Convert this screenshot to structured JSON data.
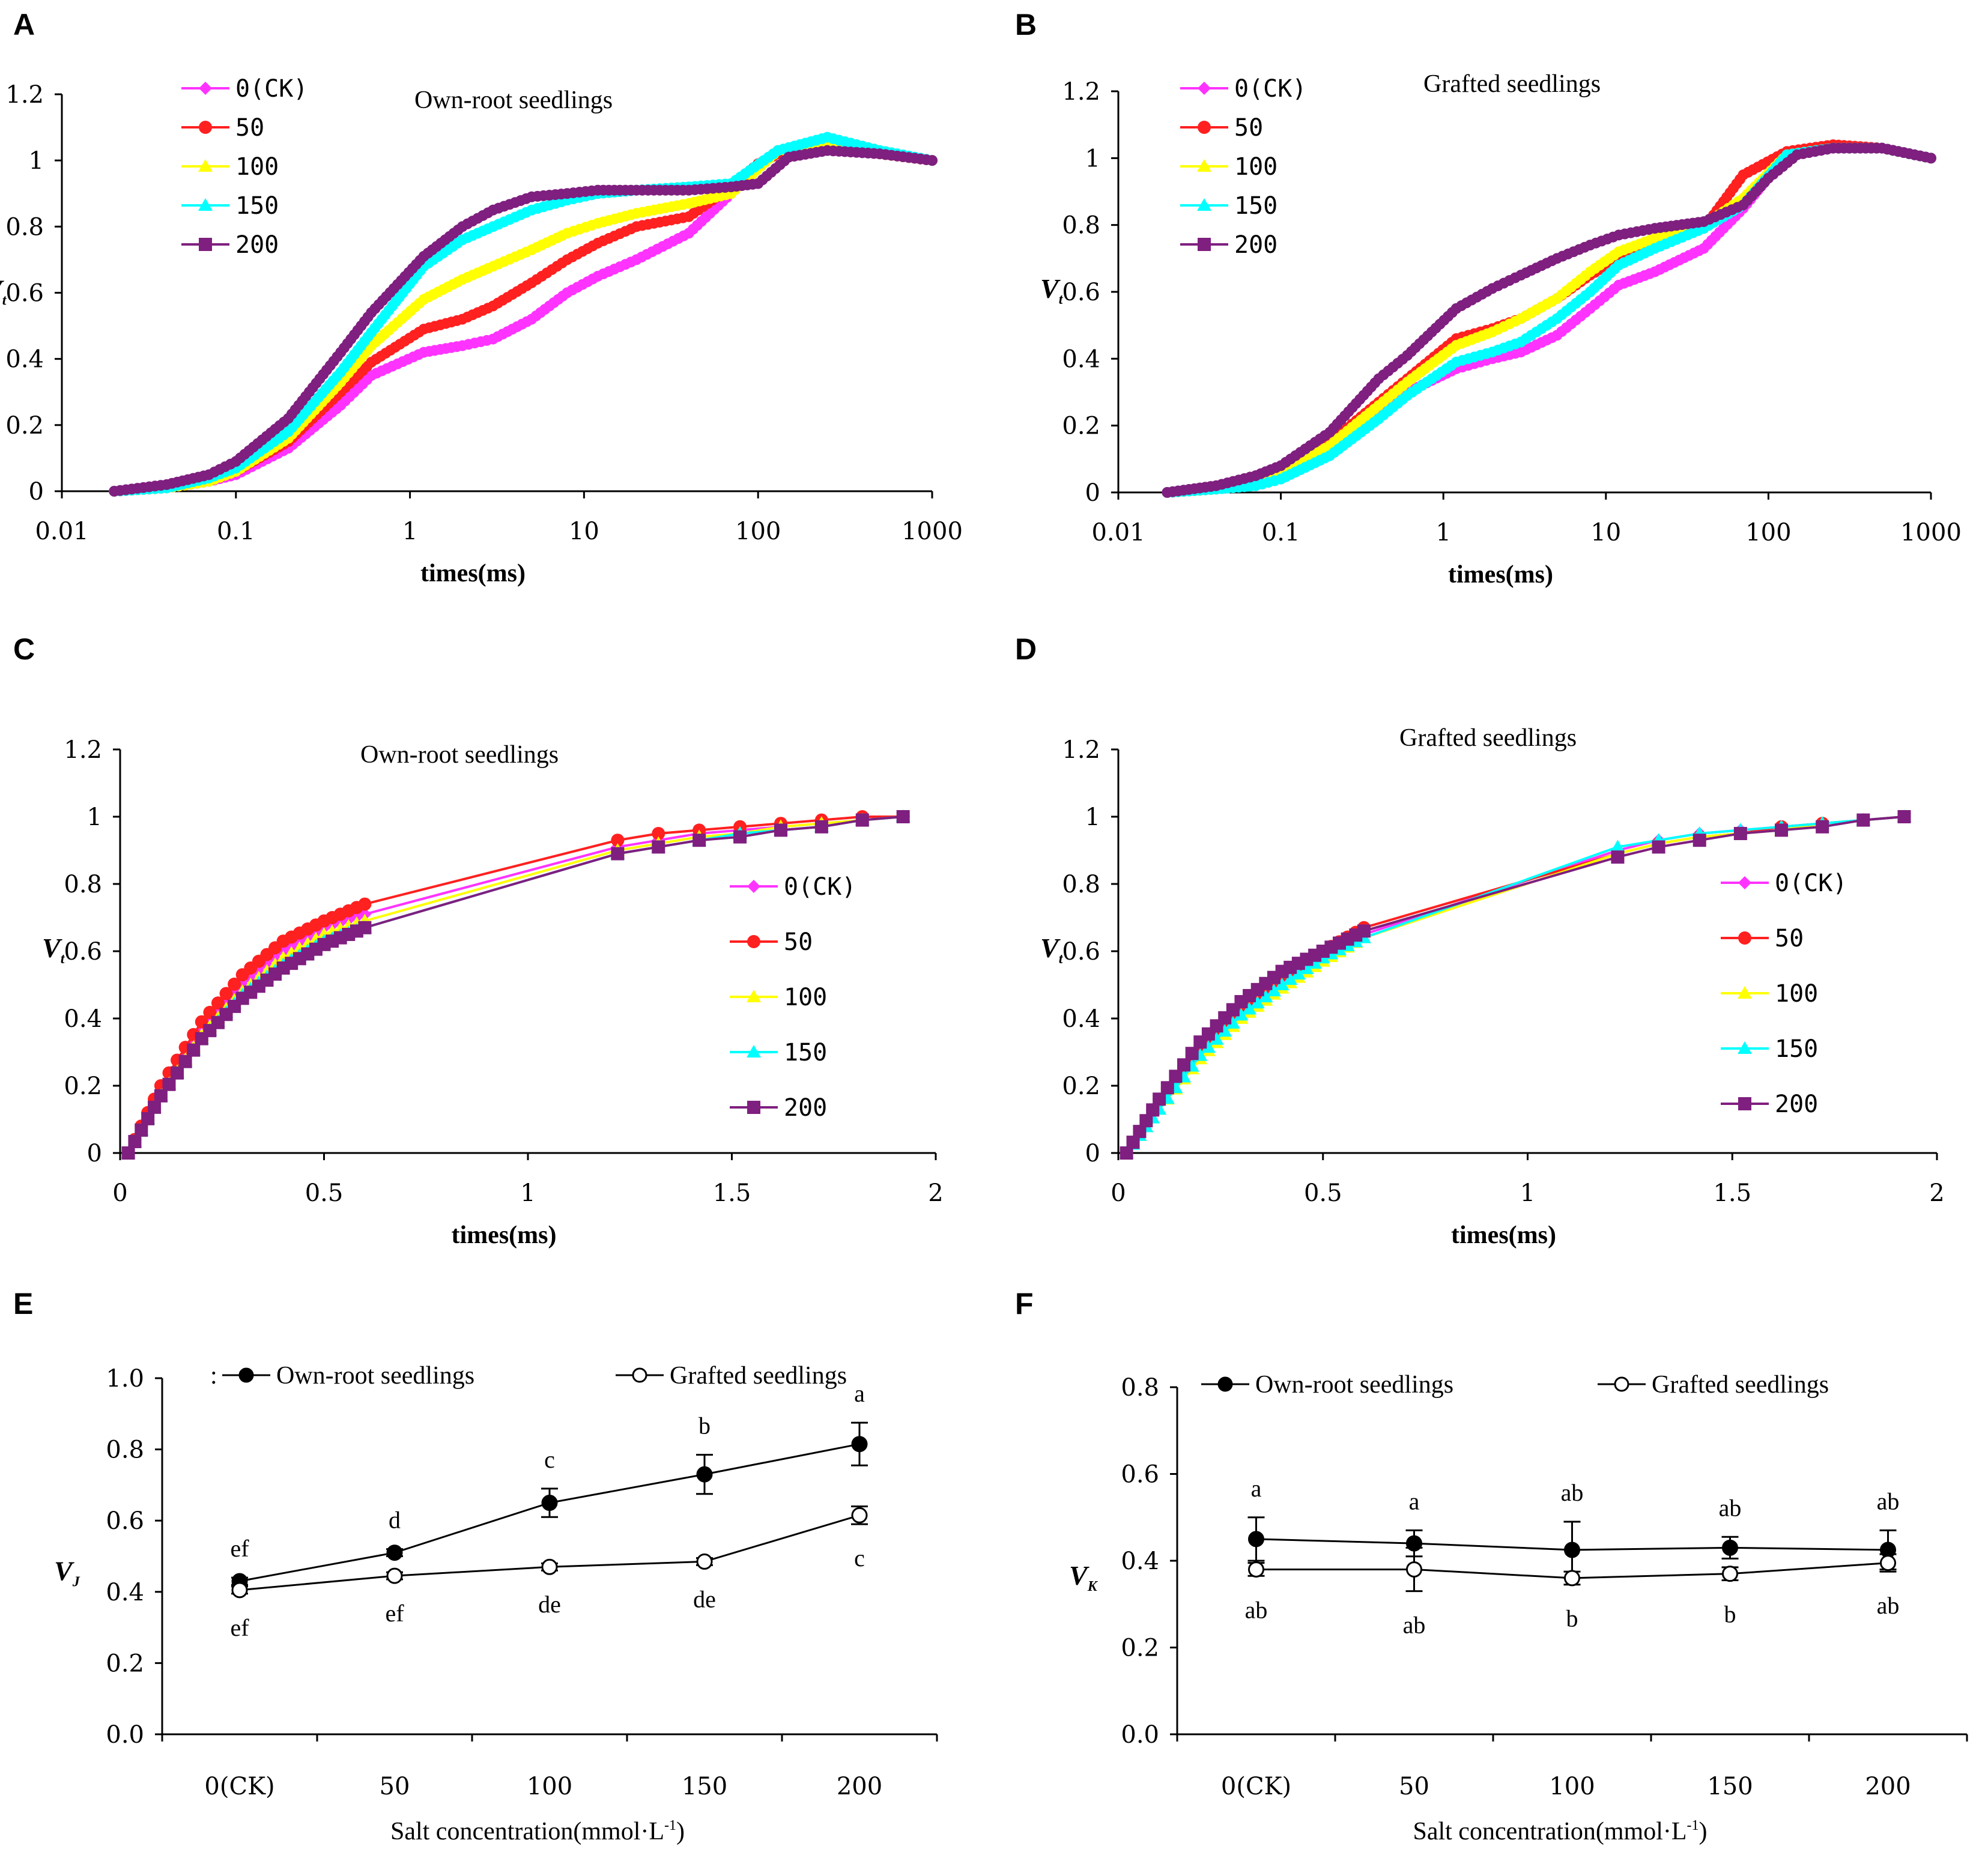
{
  "colors": {
    "s0": "#ff33ff",
    "s50": "#ff2020",
    "s100": "#ffff00",
    "s150": "#00ffff",
    "s200": "#7f1f7f",
    "axis": "#000000"
  },
  "chart_data": [
    {
      "panel": "A",
      "type": "line",
      "title": "Own-root seedlings",
      "xscale": "log",
      "xlabel": "times(ms)",
      "ylabel": "V",
      "ylabel_sub": "t",
      "xticks": [
        "0.01",
        "0.1",
        "1",
        "10",
        "100",
        "1000"
      ],
      "yticks": [
        "0",
        "0.2",
        "0.4",
        "0.6",
        "0.8",
        "1",
        "1.2"
      ],
      "xlim": [
        0.01,
        1000
      ],
      "ylim": [
        0,
        1.2
      ],
      "legend": [
        "0(CK)",
        "50",
        "100",
        "150",
        "200"
      ],
      "series": [
        {
          "name": "0(CK)",
          "x": [
            0.02,
            0.04,
            0.07,
            0.1,
            0.2,
            0.4,
            0.6,
            1.2,
            2,
            3,
            5,
            8,
            12,
            20,
            40,
            70,
            130,
            250,
            500,
            1000
          ],
          "y": [
            0,
            0.01,
            0.03,
            0.05,
            0.13,
            0.26,
            0.35,
            0.42,
            0.44,
            0.46,
            0.52,
            0.6,
            0.65,
            0.7,
            0.78,
            0.9,
            1.03,
            1.05,
            1.02,
            1.0
          ]
        },
        {
          "name": "50",
          "x": [
            0.02,
            0.04,
            0.07,
            0.1,
            0.2,
            0.4,
            0.6,
            1.2,
            2,
            3,
            5,
            8,
            12,
            20,
            40,
            70,
            100,
            130,
            250,
            500,
            1000
          ],
          "y": [
            0,
            0.01,
            0.03,
            0.06,
            0.15,
            0.3,
            0.39,
            0.49,
            0.52,
            0.56,
            0.63,
            0.7,
            0.75,
            0.8,
            0.83,
            0.92,
            0.99,
            1.02,
            1.05,
            1.02,
            1.0
          ]
        },
        {
          "name": "100",
          "x": [
            0.02,
            0.04,
            0.07,
            0.1,
            0.2,
            0.4,
            0.6,
            1.2,
            2,
            3,
            5,
            8,
            12,
            20,
            40,
            70,
            130,
            250,
            500,
            1000
          ],
          "y": [
            0,
            0.01,
            0.03,
            0.06,
            0.16,
            0.33,
            0.44,
            0.58,
            0.64,
            0.68,
            0.73,
            0.78,
            0.81,
            0.84,
            0.87,
            0.9,
            1.03,
            1.05,
            1.02,
            1.0
          ]
        },
        {
          "name": "150",
          "x": [
            0.02,
            0.04,
            0.07,
            0.1,
            0.2,
            0.4,
            0.6,
            1.2,
            2,
            3,
            5,
            8,
            12,
            20,
            40,
            70,
            130,
            250,
            500,
            1000
          ],
          "y": [
            0,
            0.01,
            0.04,
            0.07,
            0.18,
            0.36,
            0.48,
            0.68,
            0.76,
            0.8,
            0.85,
            0.88,
            0.9,
            0.91,
            0.92,
            0.93,
            1.03,
            1.07,
            1.03,
            1.0
          ]
        },
        {
          "name": "200",
          "x": [
            0.02,
            0.04,
            0.07,
            0.1,
            0.2,
            0.4,
            0.6,
            1.2,
            2,
            3,
            5,
            8,
            12,
            20,
            40,
            70,
            100,
            150,
            250,
            500,
            1000
          ],
          "y": [
            0,
            0.02,
            0.05,
            0.09,
            0.22,
            0.42,
            0.54,
            0.71,
            0.8,
            0.85,
            0.89,
            0.9,
            0.91,
            0.91,
            0.91,
            0.92,
            0.93,
            1.01,
            1.03,
            1.02,
            1.0
          ]
        }
      ]
    },
    {
      "panel": "B",
      "type": "line",
      "title": "Grafted seedlings",
      "xscale": "log",
      "xlabel": "times(ms)",
      "ylabel": "V",
      "ylabel_sub": "t",
      "xticks": [
        "0.01",
        "0.1",
        "1",
        "10",
        "100",
        "1000"
      ],
      "yticks": [
        "0",
        "0.2",
        "0.4",
        "0.6",
        "0.8",
        "1",
        "1.2"
      ],
      "xlim": [
        0.01,
        1000
      ],
      "ylim": [
        0,
        1.2
      ],
      "legend": [
        "0(CK)",
        "50",
        "100",
        "150",
        "200"
      ],
      "series": [
        {
          "name": "0(CK)",
          "x": [
            0.02,
            0.04,
            0.07,
            0.1,
            0.2,
            0.4,
            0.6,
            1.2,
            2,
            3,
            5,
            8,
            12,
            20,
            40,
            70,
            130,
            250,
            500,
            1000
          ],
          "y": [
            0,
            0.01,
            0.03,
            0.05,
            0.12,
            0.23,
            0.3,
            0.37,
            0.4,
            0.42,
            0.47,
            0.55,
            0.62,
            0.66,
            0.73,
            0.85,
            1.01,
            1.03,
            1.03,
            1.0
          ]
        },
        {
          "name": "50",
          "x": [
            0.02,
            0.04,
            0.07,
            0.1,
            0.2,
            0.4,
            0.6,
            1.2,
            2,
            3,
            5,
            8,
            12,
            20,
            40,
            70,
            130,
            250,
            500,
            1000
          ],
          "y": [
            0,
            0.01,
            0.03,
            0.06,
            0.15,
            0.27,
            0.34,
            0.46,
            0.49,
            0.52,
            0.58,
            0.65,
            0.7,
            0.74,
            0.79,
            0.95,
            1.02,
            1.04,
            1.03,
            1.0
          ]
        },
        {
          "name": "100",
          "x": [
            0.02,
            0.04,
            0.07,
            0.1,
            0.2,
            0.4,
            0.6,
            1.2,
            2,
            3,
            5,
            8,
            12,
            20,
            40,
            70,
            130,
            250,
            500,
            1000
          ],
          "y": [
            0,
            0.01,
            0.03,
            0.06,
            0.14,
            0.26,
            0.33,
            0.44,
            0.48,
            0.52,
            0.58,
            0.66,
            0.72,
            0.76,
            0.8,
            0.88,
            1.01,
            1.03,
            1.03,
            1.0
          ]
        },
        {
          "name": "150",
          "x": [
            0.02,
            0.04,
            0.07,
            0.1,
            0.2,
            0.4,
            0.6,
            1.2,
            2,
            3,
            5,
            8,
            12,
            20,
            40,
            70,
            130,
            250,
            500,
            1000
          ],
          "y": [
            0,
            0.01,
            0.02,
            0.04,
            0.11,
            0.22,
            0.29,
            0.39,
            0.42,
            0.45,
            0.52,
            0.6,
            0.68,
            0.73,
            0.79,
            0.86,
            1.01,
            1.03,
            1.03,
            1.0
          ]
        },
        {
          "name": "200",
          "x": [
            0.02,
            0.04,
            0.07,
            0.1,
            0.2,
            0.4,
            0.6,
            1.2,
            2,
            3,
            5,
            8,
            12,
            20,
            40,
            70,
            100,
            150,
            250,
            500,
            1000
          ],
          "y": [
            0,
            0.02,
            0.05,
            0.08,
            0.18,
            0.34,
            0.41,
            0.55,
            0.61,
            0.65,
            0.7,
            0.74,
            0.77,
            0.79,
            0.81,
            0.86,
            0.94,
            1.01,
            1.03,
            1.03,
            1.0
          ]
        }
      ]
    },
    {
      "panel": "C",
      "type": "line",
      "title": "Own-root seedlings",
      "xscale": "linear",
      "xlabel": "times(ms)",
      "ylabel": "V",
      "ylabel_sub": "t",
      "xticks": [
        "0",
        "0.5",
        "1",
        "1.5",
        "2"
      ],
      "yticks": [
        "0",
        "0.2",
        "0.4",
        "0.6",
        "0.8",
        "1",
        "1.2"
      ],
      "xlim": [
        0,
        2
      ],
      "ylim": [
        0,
        1.2
      ],
      "legend": [
        "0(CK)",
        "50",
        "100",
        "150",
        "200"
      ],
      "series": [
        {
          "name": "0(CK)",
          "x": [
            0.02,
            0.1,
            0.2,
            0.3,
            0.4,
            0.5,
            0.6,
            1.22,
            1.32,
            1.42,
            1.52,
            1.62,
            1.72,
            1.82,
            1.92
          ],
          "y": [
            0,
            0.18,
            0.36,
            0.5,
            0.6,
            0.67,
            0.71,
            0.91,
            0.93,
            0.95,
            0.96,
            0.97,
            0.98,
            0.99,
            1.0
          ]
        },
        {
          "name": "50",
          "x": [
            0.02,
            0.1,
            0.2,
            0.3,
            0.4,
            0.5,
            0.6,
            1.22,
            1.32,
            1.42,
            1.52,
            1.62,
            1.72,
            1.82,
            1.92
          ],
          "y": [
            0,
            0.2,
            0.39,
            0.53,
            0.63,
            0.69,
            0.74,
            0.93,
            0.95,
            0.96,
            0.97,
            0.98,
            0.99,
            1.0,
            1.0
          ]
        },
        {
          "name": "100",
          "x": [
            0.02,
            0.1,
            0.2,
            0.3,
            0.4,
            0.5,
            0.6,
            1.22,
            1.32,
            1.42,
            1.52,
            1.62,
            1.72,
            1.82,
            1.92
          ],
          "y": [
            0,
            0.17,
            0.35,
            0.48,
            0.58,
            0.65,
            0.69,
            0.9,
            0.92,
            0.94,
            0.95,
            0.97,
            0.98,
            0.99,
            1.0
          ]
        },
        {
          "name": "150",
          "x": [
            0.02,
            0.1,
            0.2,
            0.3,
            0.4,
            0.5,
            0.6,
            1.22,
            1.32,
            1.42,
            1.52,
            1.62,
            1.72,
            1.82,
            1.92
          ],
          "y": [
            0,
            0.17,
            0.34,
            0.47,
            0.56,
            0.63,
            0.67,
            0.89,
            0.91,
            0.93,
            0.95,
            0.96,
            0.97,
            0.99,
            1.0
          ]
        },
        {
          "name": "200",
          "x": [
            0.02,
            0.1,
            0.2,
            0.3,
            0.4,
            0.5,
            0.6,
            1.22,
            1.32,
            1.42,
            1.52,
            1.62,
            1.72,
            1.82,
            1.92
          ],
          "y": [
            0,
            0.17,
            0.34,
            0.46,
            0.55,
            0.62,
            0.67,
            0.89,
            0.91,
            0.93,
            0.94,
            0.96,
            0.97,
            0.99,
            1.0
          ]
        }
      ]
    },
    {
      "panel": "D",
      "type": "line",
      "title": "Grafted seedlings",
      "xscale": "linear",
      "xlabel": "times(ms)",
      "ylabel": "V",
      "ylabel_sub": "t",
      "xticks": [
        "0",
        "0.5",
        "1",
        "1.5",
        "2"
      ],
      "yticks": [
        "0",
        "0.2",
        "0.4",
        "0.6",
        "0.8",
        "1",
        "1.2"
      ],
      "xlim": [
        0,
        2
      ],
      "ylim": [
        0,
        1.2
      ],
      "legend": [
        "0(CK)",
        "50",
        "100",
        "150",
        "200"
      ],
      "series": [
        {
          "name": "0(CK)",
          "x": [
            0.02,
            0.1,
            0.2,
            0.3,
            0.4,
            0.5,
            0.6,
            1.22,
            1.32,
            1.42,
            1.52,
            1.62,
            1.72,
            1.82,
            1.92
          ],
          "y": [
            0,
            0.15,
            0.3,
            0.42,
            0.51,
            0.59,
            0.65,
            0.9,
            0.93,
            0.95,
            0.96,
            0.97,
            0.98,
            0.99,
            1.0
          ]
        },
        {
          "name": "50",
          "x": [
            0.02,
            0.1,
            0.2,
            0.3,
            0.4,
            0.5,
            0.6,
            1.22,
            1.32,
            1.42,
            1.52,
            1.62,
            1.72,
            1.82,
            1.92
          ],
          "y": [
            0,
            0.16,
            0.32,
            0.44,
            0.53,
            0.6,
            0.67,
            0.89,
            0.92,
            0.94,
            0.95,
            0.97,
            0.98,
            0.99,
            1.0
          ]
        },
        {
          "name": "100",
          "x": [
            0.02,
            0.1,
            0.2,
            0.3,
            0.4,
            0.5,
            0.6,
            1.22,
            1.32,
            1.42,
            1.52,
            1.62,
            1.72,
            1.82,
            1.92
          ],
          "y": [
            0,
            0.13,
            0.28,
            0.4,
            0.49,
            0.57,
            0.64,
            0.89,
            0.92,
            0.94,
            0.95,
            0.96,
            0.98,
            0.99,
            1.0
          ]
        },
        {
          "name": "150",
          "x": [
            0.02,
            0.1,
            0.2,
            0.3,
            0.4,
            0.5,
            0.6,
            1.22,
            1.32,
            1.42,
            1.52,
            1.62,
            1.72,
            1.82,
            1.92
          ],
          "y": [
            0,
            0.13,
            0.29,
            0.41,
            0.5,
            0.58,
            0.64,
            0.91,
            0.93,
            0.95,
            0.96,
            0.97,
            0.98,
            0.99,
            1.0
          ]
        },
        {
          "name": "200",
          "x": [
            0.02,
            0.1,
            0.2,
            0.3,
            0.4,
            0.5,
            0.6,
            1.22,
            1.32,
            1.42,
            1.52,
            1.62,
            1.72,
            1.82,
            1.92
          ],
          "y": [
            0,
            0.16,
            0.33,
            0.45,
            0.54,
            0.6,
            0.66,
            0.88,
            0.91,
            0.93,
            0.95,
            0.96,
            0.97,
            0.99,
            1.0
          ]
        }
      ]
    },
    {
      "panel": "E",
      "type": "line",
      "xscale": "category",
      "categories": [
        "0(CK)",
        "50",
        "100",
        "150",
        "200"
      ],
      "xlabel": "Salt concentration(mmol·L",
      "xlabel_sup": "-1",
      "xlabel_end": ")",
      "ylabel": "V",
      "ylabel_sub": "J",
      "yticks": [
        "0.0",
        "0.2",
        "0.4",
        "0.6",
        "0.8",
        "1.0"
      ],
      "ylim": [
        0,
        1.0
      ],
      "legend_marker": ":",
      "series": [
        {
          "name": "Own-root seedlings",
          "values": [
            0.43,
            0.51,
            0.65,
            0.73,
            0.815
          ],
          "errors": [
            0.01,
            0.01,
            0.04,
            0.055,
            0.06
          ],
          "labels": [
            "ef",
            "d",
            "c",
            "b",
            "a"
          ],
          "filled": true
        },
        {
          "name": "Grafted seedlings",
          "values": [
            0.405,
            0.445,
            0.47,
            0.485,
            0.615
          ],
          "errors": [
            0.01,
            0.01,
            0.01,
            0.01,
            0.025
          ],
          "labels": [
            "ef",
            "ef",
            "de",
            "de",
            "c"
          ],
          "filled": false
        }
      ]
    },
    {
      "panel": "F",
      "type": "line",
      "xscale": "category",
      "categories": [
        "0(CK)",
        "50",
        "100",
        "150",
        "200"
      ],
      "xlabel": "Salt concentration(mmol·L",
      "xlabel_sup": "-1",
      "xlabel_end": ")",
      "ylabel": "V",
      "ylabel_sub": "K",
      "yticks": [
        "0.0",
        "0.2",
        "0.4",
        "0.6",
        "0.8"
      ],
      "ylim": [
        0,
        0.8
      ],
      "series": [
        {
          "name": "Own-root seedlings",
          "values": [
            0.45,
            0.44,
            0.425,
            0.43,
            0.425
          ],
          "errors": [
            0.05,
            0.03,
            0.065,
            0.025,
            0.045
          ],
          "labels": [
            "a",
            "a",
            "ab",
            "ab",
            "ab"
          ],
          "filled": true
        },
        {
          "name": "Grafted seedlings",
          "values": [
            0.38,
            0.38,
            0.36,
            0.37,
            0.395
          ],
          "errors": [
            0.015,
            0.05,
            0.015,
            0.015,
            0.02
          ],
          "labels": [
            "ab",
            "ab",
            "b",
            "b",
            "ab"
          ],
          "filled": false
        }
      ]
    }
  ]
}
